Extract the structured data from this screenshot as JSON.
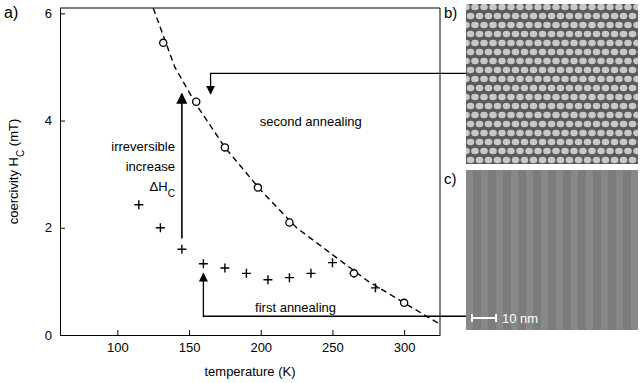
{
  "chart_data": {
    "type": "scatter",
    "panel_label": "a)",
    "xlabel": "temperature (K)",
    "ylabel": [
      "coercivity H",
      "C",
      " (mT)"
    ],
    "xlim": [
      60,
      325
    ],
    "ylim": [
      0,
      6.1
    ],
    "xticks": [
      100,
      150,
      200,
      250,
      300
    ],
    "yticks": [
      0,
      2,
      4,
      6
    ],
    "series": [
      {
        "name": "first annealing",
        "marker": "plus",
        "color": "#000000",
        "x": [
          115,
          130,
          145,
          160,
          175,
          190,
          205,
          220,
          235,
          250,
          265,
          280
        ],
        "values": [
          2.43,
          2.0,
          1.6,
          1.33,
          1.25,
          1.15,
          1.03,
          1.07,
          1.15,
          1.35,
          1.15,
          0.88
        ]
      },
      {
        "name": "second annealing",
        "marker": "circle",
        "color": "#000000",
        "x": [
          132,
          155,
          175,
          198,
          220,
          265,
          300
        ],
        "values": [
          5.45,
          4.35,
          3.5,
          2.75,
          2.1,
          1.15,
          0.6
        ]
      },
      {
        "type": "line",
        "line_style": "dashed",
        "marker": "none",
        "color": "#000000",
        "x": [
          125,
          140,
          155,
          175,
          200,
          225,
          250,
          275,
          300,
          325
        ],
        "values": [
          6.1,
          5.0,
          4.3,
          3.5,
          2.7,
          2.0,
          1.5,
          1.0,
          0.6,
          0.2
        ]
      }
    ],
    "annotations": [
      {
        "lines": [
          "irreversible",
          "increase"
        ],
        "symbol": "ΔH",
        "subscript": "C",
        "x": 145,
        "from": 1.8,
        "to": 4.5
      }
    ],
    "panels": [
      {
        "label": "b)",
        "arrow": {
          "x": 165,
          "y": 4.88,
          "to": 4.5
        }
      },
      {
        "label": "c)",
        "scale_bar": "10 nm",
        "arrow": {
          "x": 160,
          "y": 0.35,
          "to": 1.15
        }
      }
    ]
  }
}
